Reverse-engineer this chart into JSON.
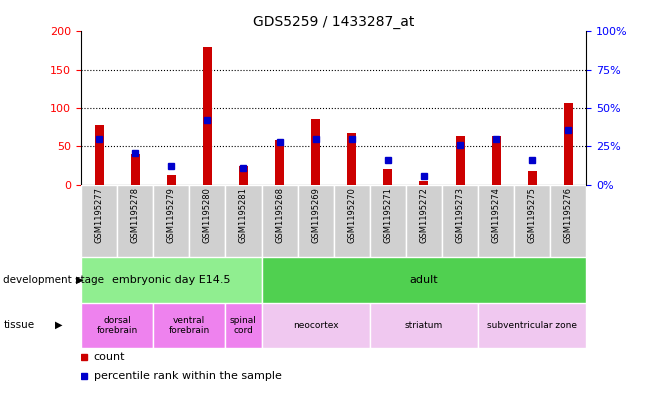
{
  "title": "GDS5259 / 1433287_at",
  "samples": [
    "GSM1195277",
    "GSM1195278",
    "GSM1195279",
    "GSM1195280",
    "GSM1195281",
    "GSM1195268",
    "GSM1195269",
    "GSM1195270",
    "GSM1195271",
    "GSM1195272",
    "GSM1195273",
    "GSM1195274",
    "GSM1195275",
    "GSM1195276"
  ],
  "counts": [
    78,
    40,
    13,
    180,
    25,
    58,
    86,
    68,
    20,
    5,
    63,
    63,
    18,
    107
  ],
  "percentiles": [
    30,
    21,
    12,
    42,
    11,
    28,
    30,
    30,
    16,
    6,
    26,
    30,
    16,
    36
  ],
  "ylim_left": [
    0,
    200
  ],
  "ylim_right": [
    0,
    100
  ],
  "yticks_left": [
    0,
    50,
    100,
    150,
    200
  ],
  "yticks_right": [
    0,
    25,
    50,
    75,
    100
  ],
  "ytick_labels_right": [
    "0%",
    "25%",
    "50%",
    "75%",
    "100%"
  ],
  "bar_color": "#cc0000",
  "dot_color": "#0000cc",
  "dev_stage_groups": [
    {
      "label": "embryonic day E14.5",
      "start": 0,
      "end": 5,
      "color": "#90ee90"
    },
    {
      "label": "adult",
      "start": 5,
      "end": 14,
      "color": "#50d050"
    }
  ],
  "tissue_groups": [
    {
      "label": "dorsal\nforebrain",
      "start": 0,
      "end": 2,
      "color": "#ee82ee"
    },
    {
      "label": "ventral\nforebrain",
      "start": 2,
      "end": 4,
      "color": "#ee82ee"
    },
    {
      "label": "spinal\ncord",
      "start": 4,
      "end": 5,
      "color": "#ee82ee"
    },
    {
      "label": "neocortex",
      "start": 5,
      "end": 8,
      "color": "#f0c8f0"
    },
    {
      "label": "striatum",
      "start": 8,
      "end": 11,
      "color": "#f0c8f0"
    },
    {
      "label": "subventricular zone",
      "start": 11,
      "end": 14,
      "color": "#f0c8f0"
    }
  ],
  "xtick_bg": "#d0d0d0",
  "plot_bg": "#ffffff"
}
